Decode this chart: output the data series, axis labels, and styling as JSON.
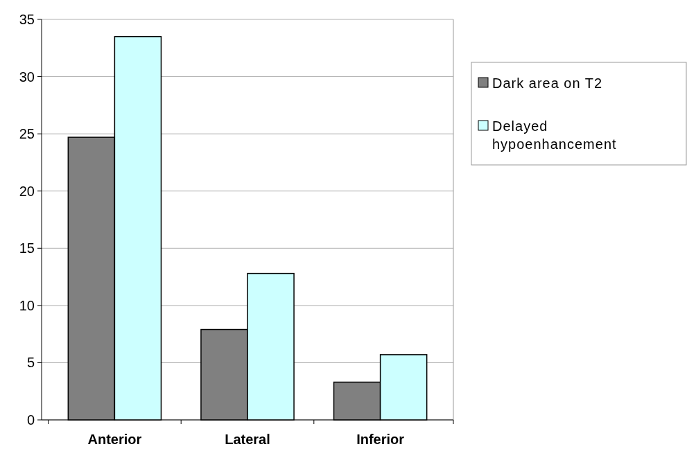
{
  "chart_data": {
    "type": "bar",
    "categories": [
      "Anterior",
      "Lateral",
      "Inferior"
    ],
    "series": [
      {
        "name": "Dark area on T2",
        "color": "#808080",
        "values": [
          24.7,
          7.9,
          3.3
        ]
      },
      {
        "name": "Delayed hypoenhancement",
        "color": "#ccffff",
        "values": [
          33.5,
          12.8,
          5.7
        ]
      }
    ],
    "ylim": [
      0,
      35
    ],
    "yticks": [
      0,
      5,
      10,
      15,
      20,
      25,
      30,
      35
    ],
    "grid": "y",
    "legend": "right"
  }
}
